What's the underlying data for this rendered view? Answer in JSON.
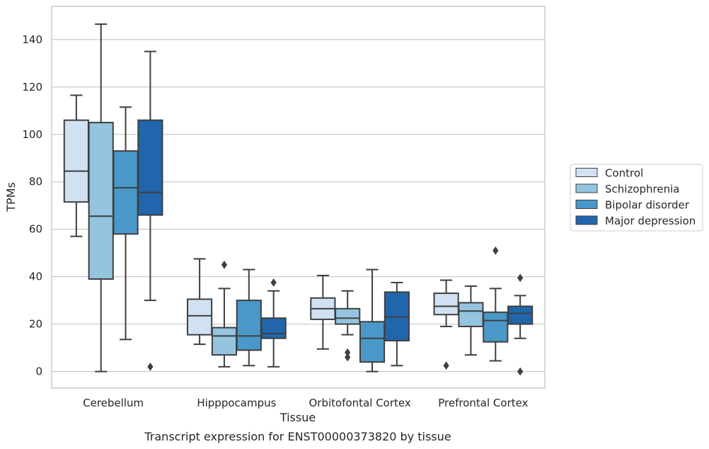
{
  "chart_data": {
    "type": "box",
    "title": "Transcript expression for ENST00000373820 by tissue",
    "xlabel": "Tissue",
    "ylabel": "TPMs",
    "ylim": [
      -7,
      154
    ],
    "yticks": [
      0,
      20,
      40,
      60,
      80,
      100,
      120,
      140
    ],
    "grid": true,
    "legend_position": "right",
    "categories": [
      "Cerebellum",
      "Hipppocampus",
      "Orbitofontal Cortex",
      "Prefrontal Cortex"
    ],
    "series": [
      {
        "name": "Control",
        "color": "#d0e1f2",
        "boxes": [
          {
            "whislo": 57,
            "q1": 71.5,
            "med": 84.5,
            "q3": 106,
            "whishi": 116.5,
            "fliers": []
          },
          {
            "whislo": 11.5,
            "q1": 15.5,
            "med": 23.5,
            "q3": 30.5,
            "whishi": 47.5,
            "fliers": []
          },
          {
            "whislo": 9.5,
            "q1": 22,
            "med": 26.5,
            "q3": 31,
            "whishi": 40.5,
            "fliers": []
          },
          {
            "whislo": 19,
            "q1": 24,
            "med": 27.5,
            "q3": 33,
            "whishi": 38.5,
            "fliers": [
              2.5
            ]
          }
        ]
      },
      {
        "name": "Schizophrenia",
        "color": "#94c4df",
        "boxes": [
          {
            "whislo": 0,
            "q1": 39,
            "med": 65.5,
            "q3": 105,
            "whishi": 146.5,
            "fliers": []
          },
          {
            "whislo": 2,
            "q1": 7,
            "med": 15,
            "q3": 18.5,
            "whishi": 35,
            "fliers": [
              45
            ]
          },
          {
            "whislo": 15.5,
            "q1": 20,
            "med": 22.5,
            "q3": 26.5,
            "whishi": 34,
            "fliers": [
              8,
              6
            ]
          },
          {
            "whislo": 7,
            "q1": 19,
            "med": 25.5,
            "q3": 29,
            "whishi": 36,
            "fliers": []
          }
        ]
      },
      {
        "name": "Bipolar disorder",
        "color": "#4a98c9",
        "boxes": [
          {
            "whislo": 13.5,
            "q1": 58,
            "med": 77.5,
            "q3": 93,
            "whishi": 111.5,
            "fliers": []
          },
          {
            "whislo": 2.5,
            "q1": 9,
            "med": 15,
            "q3": 30,
            "whishi": 43,
            "fliers": []
          },
          {
            "whislo": 0,
            "q1": 4,
            "med": 14,
            "q3": 21,
            "whishi": 43,
            "fliers": []
          },
          {
            "whislo": 4.5,
            "q1": 12.5,
            "med": 21.5,
            "q3": 25,
            "whishi": 35,
            "fliers": [
              51
            ]
          }
        ]
      },
      {
        "name": "Major depression",
        "color": "#2166ac",
        "boxes": [
          {
            "whislo": 30,
            "q1": 66,
            "med": 75.5,
            "q3": 106,
            "whishi": 135,
            "fliers": [
              2
            ]
          },
          {
            "whislo": 2,
            "q1": 14,
            "med": 16,
            "q3": 22.5,
            "whishi": 34,
            "fliers": [
              37.5
            ]
          },
          {
            "whislo": 2.5,
            "q1": 13,
            "med": 23,
            "q3": 33.5,
            "whishi": 37.5,
            "fliers": []
          },
          {
            "whislo": 14,
            "q1": 20,
            "med": 24.5,
            "q3": 27.5,
            "whishi": 32,
            "fliers": [
              39.5,
              0
            ]
          }
        ]
      }
    ]
  },
  "theme": {
    "grid_color": "#cccccc",
    "edge_color": "#3f3f3f",
    "text_color": "#262626"
  }
}
